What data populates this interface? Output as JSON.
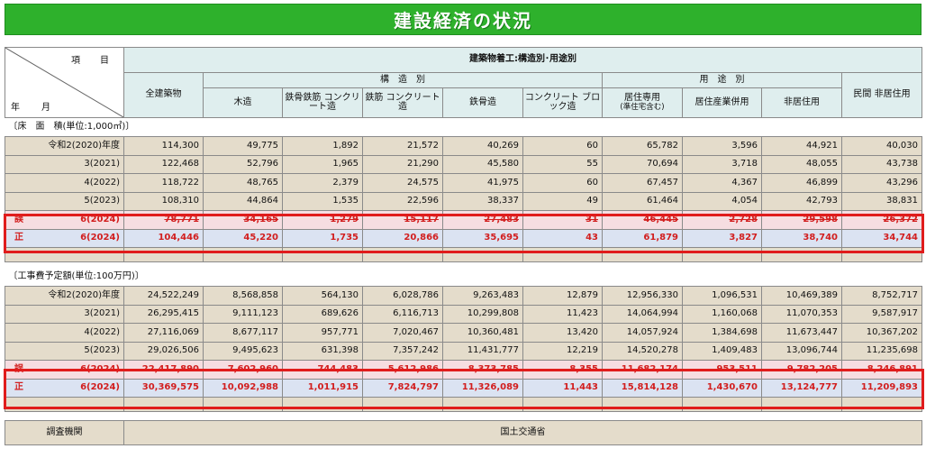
{
  "title": "建設経済の状況",
  "header": {
    "item_label": "項　目",
    "ym_label": "年　月",
    "top_group": "建築物着工:構造別･用途別",
    "all_buildings": "全建築物",
    "structure_group": "構　造　別",
    "use_group": "用　途　別",
    "private_nonres": "民間\n非居住用",
    "columns": {
      "wood": "木造",
      "src": "鉄骨鉄筋\nコンクリート造",
      "rc": "鉄筋\nコンクリート造",
      "steel": "鉄骨造",
      "cb": "コンクリート\nブロック造",
      "res": "居住専用",
      "res_note": "(準住宅含む)",
      "res_ind": "居住産業併用",
      "nonres": "非居住用"
    }
  },
  "sections": [
    {
      "label": "〔床　面　積(単位:1,000㎡)〕",
      "rows": [
        {
          "label": "令和2(2020)年度",
          "values": [
            "114,300",
            "49,775",
            "1,892",
            "21,572",
            "40,269",
            "60",
            "65,782",
            "3,596",
            "44,921",
            "40,030"
          ]
        },
        {
          "label": "3(2021)",
          "values": [
            "122,468",
            "52,796",
            "1,965",
            "21,290",
            "45,580",
            "55",
            "70,694",
            "3,718",
            "48,055",
            "43,738"
          ]
        },
        {
          "label": "4(2022)",
          "values": [
            "118,722",
            "48,765",
            "2,379",
            "24,575",
            "41,975",
            "60",
            "67,457",
            "4,367",
            "46,899",
            "43,296"
          ]
        },
        {
          "label": "5(2023)",
          "values": [
            "108,310",
            "44,864",
            "1,535",
            "22,596",
            "38,337",
            "49",
            "61,464",
            "4,054",
            "42,793",
            "38,831"
          ]
        },
        {
          "mark": "誤",
          "label": "6(2024)",
          "kind": "wrong",
          "values": [
            "78,771",
            "34,165",
            "1,279",
            "15,117",
            "27,483",
            "31",
            "46,445",
            "2,728",
            "29,598",
            "26,372"
          ]
        },
        {
          "mark": "正",
          "label": "6(2024)",
          "kind": "right",
          "values": [
            "104,446",
            "45,220",
            "1,735",
            "20,866",
            "35,695",
            "43",
            "61,879",
            "3,827",
            "38,740",
            "34,744"
          ]
        }
      ]
    },
    {
      "label": "〔工事費予定額(単位:100万円)〕",
      "rows": [
        {
          "label": "令和2(2020)年度",
          "values": [
            "24,522,249",
            "8,568,858",
            "564,130",
            "6,028,786",
            "9,263,483",
            "12,879",
            "12,956,330",
            "1,096,531",
            "10,469,389",
            "8,752,717"
          ]
        },
        {
          "label": "3(2021)",
          "values": [
            "26,295,415",
            "9,111,123",
            "689,626",
            "6,116,713",
            "10,299,808",
            "11,423",
            "14,064,994",
            "1,160,068",
            "11,070,353",
            "9,587,917"
          ]
        },
        {
          "label": "4(2022)",
          "values": [
            "27,116,069",
            "8,677,117",
            "957,771",
            "7,020,467",
            "10,360,481",
            "13,420",
            "14,057,924",
            "1,384,698",
            "11,673,447",
            "10,367,202"
          ]
        },
        {
          "label": "5(2023)",
          "values": [
            "29,026,506",
            "9,495,623",
            "631,398",
            "7,357,242",
            "11,431,777",
            "12,219",
            "14,520,278",
            "1,409,483",
            "13,096,744",
            "11,235,698"
          ]
        },
        {
          "mark": "誤",
          "label": "6(2024)",
          "kind": "wrong",
          "values": [
            "22,417,890",
            "7,602,960",
            "744,483",
            "5,612,986",
            "8,373,785",
            "8,355",
            "11,682,174",
            "953,511",
            "9,782,205",
            "8,246,891"
          ]
        },
        {
          "mark": "正",
          "label": "6(2024)",
          "kind": "right",
          "values": [
            "30,369,575",
            "10,092,988",
            "1,011,915",
            "7,824,797",
            "11,326,089",
            "11,443",
            "15,814,128",
            "1,430,670",
            "13,124,777",
            "11,209,893"
          ]
        }
      ]
    }
  ],
  "footer": {
    "survey_label": "調査機関",
    "survey_value": "国土交通省"
  },
  "colors": {
    "title_bg": "#2eb12c",
    "header_bg": "#dfeeee",
    "cell_bg": "#e4dccb",
    "highlight_box": "#e01c1c",
    "correction_text": "#d21e1e"
  }
}
